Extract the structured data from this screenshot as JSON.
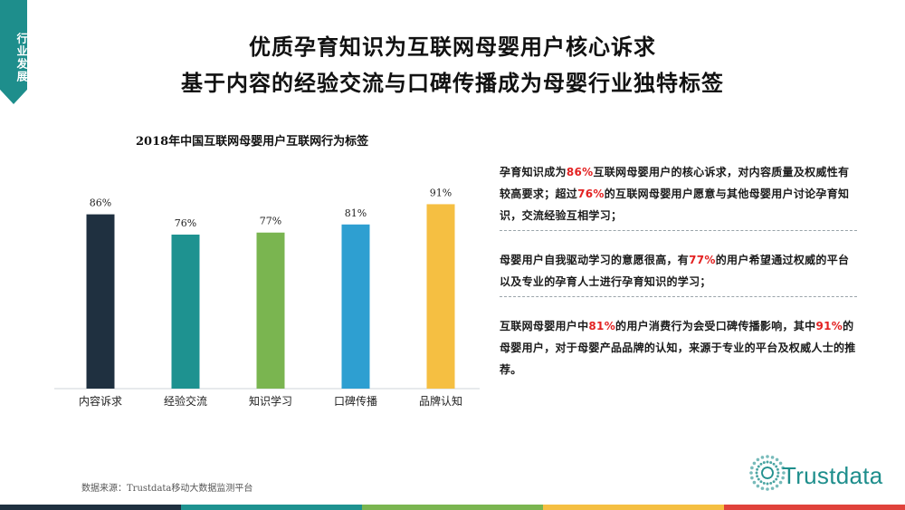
{
  "side_tag": "行业发展",
  "title_line1": "优质孕育知识为互联网母婴用户核心诉求",
  "title_line2": "基于内容的经验交流与口碑传播成为母婴行业独特标签",
  "chart_data": {
    "type": "bar",
    "title": "2018年中国互联网母婴用户互联网行为标签",
    "categories": [
      "内容诉求",
      "经验交流",
      "知识学习",
      "口碑传播",
      "品牌认知"
    ],
    "values": [
      86,
      76,
      77,
      81,
      91
    ],
    "value_labels": [
      "86%",
      "76%",
      "77%",
      "81%",
      "91%"
    ],
    "colors": [
      "#1f3040",
      "#1e9290",
      "#7ab550",
      "#2e9fd1",
      "#f5bf42"
    ],
    "ylim": [
      0,
      100
    ],
    "grid": false,
    "legend": "none"
  },
  "notes": [
    {
      "parts": [
        {
          "text": "孕育知识成为",
          "hl": false
        },
        {
          "text": "86%",
          "hl": true
        },
        {
          "text": "互联网母婴用户的核心诉求，对内容质量及权威性有较高要求；超过",
          "hl": false
        },
        {
          "text": "76%",
          "hl": true
        },
        {
          "text": "的互联网母婴用户愿意与其他母婴用户讨论孕育知识，交流经验互相学习；",
          "hl": false
        }
      ]
    },
    {
      "parts": [
        {
          "text": "母婴用户自我驱动学习的意愿很高，有",
          "hl": false
        },
        {
          "text": "77%",
          "hl": true
        },
        {
          "text": "的用户希望通过权威的平台以及专业的孕育人士进行孕育知识的学习；",
          "hl": false
        }
      ]
    },
    {
      "parts": [
        {
          "text": "互联网母婴用户中",
          "hl": false
        },
        {
          "text": "81%",
          "hl": true
        },
        {
          "text": "的用户消费行为会受口碑传播影响，其中",
          "hl": false
        },
        {
          "text": "91%",
          "hl": true
        },
        {
          "text": "的母婴用户，对于母婴产品品牌的认知，来源于专业的平台及权威人士的推荐。",
          "hl": false
        }
      ]
    }
  ],
  "source": "数据来源：Trustdata移动大数据监测平台",
  "logo_text": "Trustdata",
  "accent_color": "#1e8e8c",
  "highlight_color": "#e32222",
  "bottom_bar_colors": [
    "#1f3040",
    "#1e9290",
    "#7ab550",
    "#f5bf42",
    "#e0423b"
  ]
}
